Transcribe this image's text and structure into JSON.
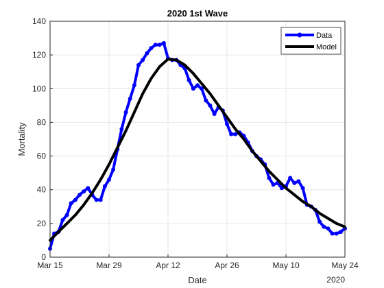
{
  "chart_data": {
    "type": "line",
    "title": "2020 1st Wave",
    "xlabel": "Date",
    "ylabel": "Mortality",
    "x_secondary_label": "2020",
    "xlim": [
      "2020-03-15",
      "2020-05-24"
    ],
    "ylim": [
      0,
      140
    ],
    "x_ticks": [
      {
        "date": "2020-03-15",
        "label": "Mar 15"
      },
      {
        "date": "2020-03-29",
        "label": "Mar 29"
      },
      {
        "date": "2020-04-12",
        "label": "Apr 12"
      },
      {
        "date": "2020-04-26",
        "label": "Apr 26"
      },
      {
        "date": "2020-05-10",
        "label": "May 10"
      },
      {
        "date": "2020-05-24",
        "label": "May 24"
      }
    ],
    "y_ticks": [
      0,
      20,
      40,
      60,
      80,
      100,
      120,
      140
    ],
    "grid": true,
    "legend_position": "top-right",
    "series": [
      {
        "name": "Data",
        "color": "#0000ff",
        "marker": "circle",
        "x": [
          "2020-03-15",
          "2020-03-16",
          "2020-03-17",
          "2020-03-18",
          "2020-03-19",
          "2020-03-20",
          "2020-03-21",
          "2020-03-22",
          "2020-03-23",
          "2020-03-24",
          "2020-03-25",
          "2020-03-26",
          "2020-03-27",
          "2020-03-28",
          "2020-03-29",
          "2020-03-30",
          "2020-03-31",
          "2020-04-01",
          "2020-04-02",
          "2020-04-03",
          "2020-04-04",
          "2020-04-05",
          "2020-04-06",
          "2020-04-07",
          "2020-04-08",
          "2020-04-09",
          "2020-04-10",
          "2020-04-11",
          "2020-04-12",
          "2020-04-13",
          "2020-04-14",
          "2020-04-15",
          "2020-04-16",
          "2020-04-17",
          "2020-04-18",
          "2020-04-19",
          "2020-04-20",
          "2020-04-21",
          "2020-04-22",
          "2020-04-23",
          "2020-04-24",
          "2020-04-25",
          "2020-04-26",
          "2020-04-27",
          "2020-04-28",
          "2020-04-29",
          "2020-04-30",
          "2020-05-01",
          "2020-05-02",
          "2020-05-03",
          "2020-05-04",
          "2020-05-05",
          "2020-05-06",
          "2020-05-07",
          "2020-05-08",
          "2020-05-09",
          "2020-05-10",
          "2020-05-11",
          "2020-05-12",
          "2020-05-13",
          "2020-05-14",
          "2020-05-15",
          "2020-05-16",
          "2020-05-17",
          "2020-05-18",
          "2020-05-19",
          "2020-05-20",
          "2020-05-21",
          "2020-05-22",
          "2020-05-23",
          "2020-05-24"
        ],
        "values": [
          5,
          14,
          15,
          22,
          25,
          32,
          34,
          37,
          39,
          41,
          37,
          34,
          34,
          42,
          46,
          52,
          64,
          76,
          86,
          94,
          102,
          114,
          117,
          121,
          124,
          126,
          126,
          127,
          118,
          117,
          117,
          114,
          112,
          105,
          100,
          102,
          100,
          93,
          90,
          85,
          89,
          87,
          79,
          73,
          73,
          74,
          72,
          68,
          63,
          60,
          58,
          55,
          47,
          43,
          44,
          41,
          42,
          47,
          44,
          45,
          41,
          31,
          30,
          28,
          21,
          18,
          17,
          14,
          14,
          15,
          17
        ]
      },
      {
        "name": "Model",
        "color": "#000000",
        "marker": "none",
        "x": [
          "2020-03-15",
          "2020-03-17",
          "2020-03-19",
          "2020-03-21",
          "2020-03-23",
          "2020-03-25",
          "2020-03-27",
          "2020-03-29",
          "2020-03-31",
          "2020-04-02",
          "2020-04-04",
          "2020-04-06",
          "2020-04-08",
          "2020-04-10",
          "2020-04-12",
          "2020-04-14",
          "2020-04-16",
          "2020-04-18",
          "2020-04-20",
          "2020-04-22",
          "2020-04-24",
          "2020-04-26",
          "2020-04-28",
          "2020-04-30",
          "2020-05-02",
          "2020-05-04",
          "2020-05-06",
          "2020-05-08",
          "2020-05-10",
          "2020-05-12",
          "2020-05-14",
          "2020-05-16",
          "2020-05-18",
          "2020-05-20",
          "2020-05-22",
          "2020-05-24"
        ],
        "values": [
          10,
          15,
          20,
          25,
          31,
          38,
          46,
          55,
          65,
          75,
          86,
          97,
          106,
          113,
          117.5,
          117,
          114,
          109,
          103,
          97,
          90,
          83,
          76,
          70,
          63,
          57,
          51,
          46,
          41,
          37,
          33,
          30,
          26,
          23,
          20,
          18
        ]
      }
    ]
  }
}
